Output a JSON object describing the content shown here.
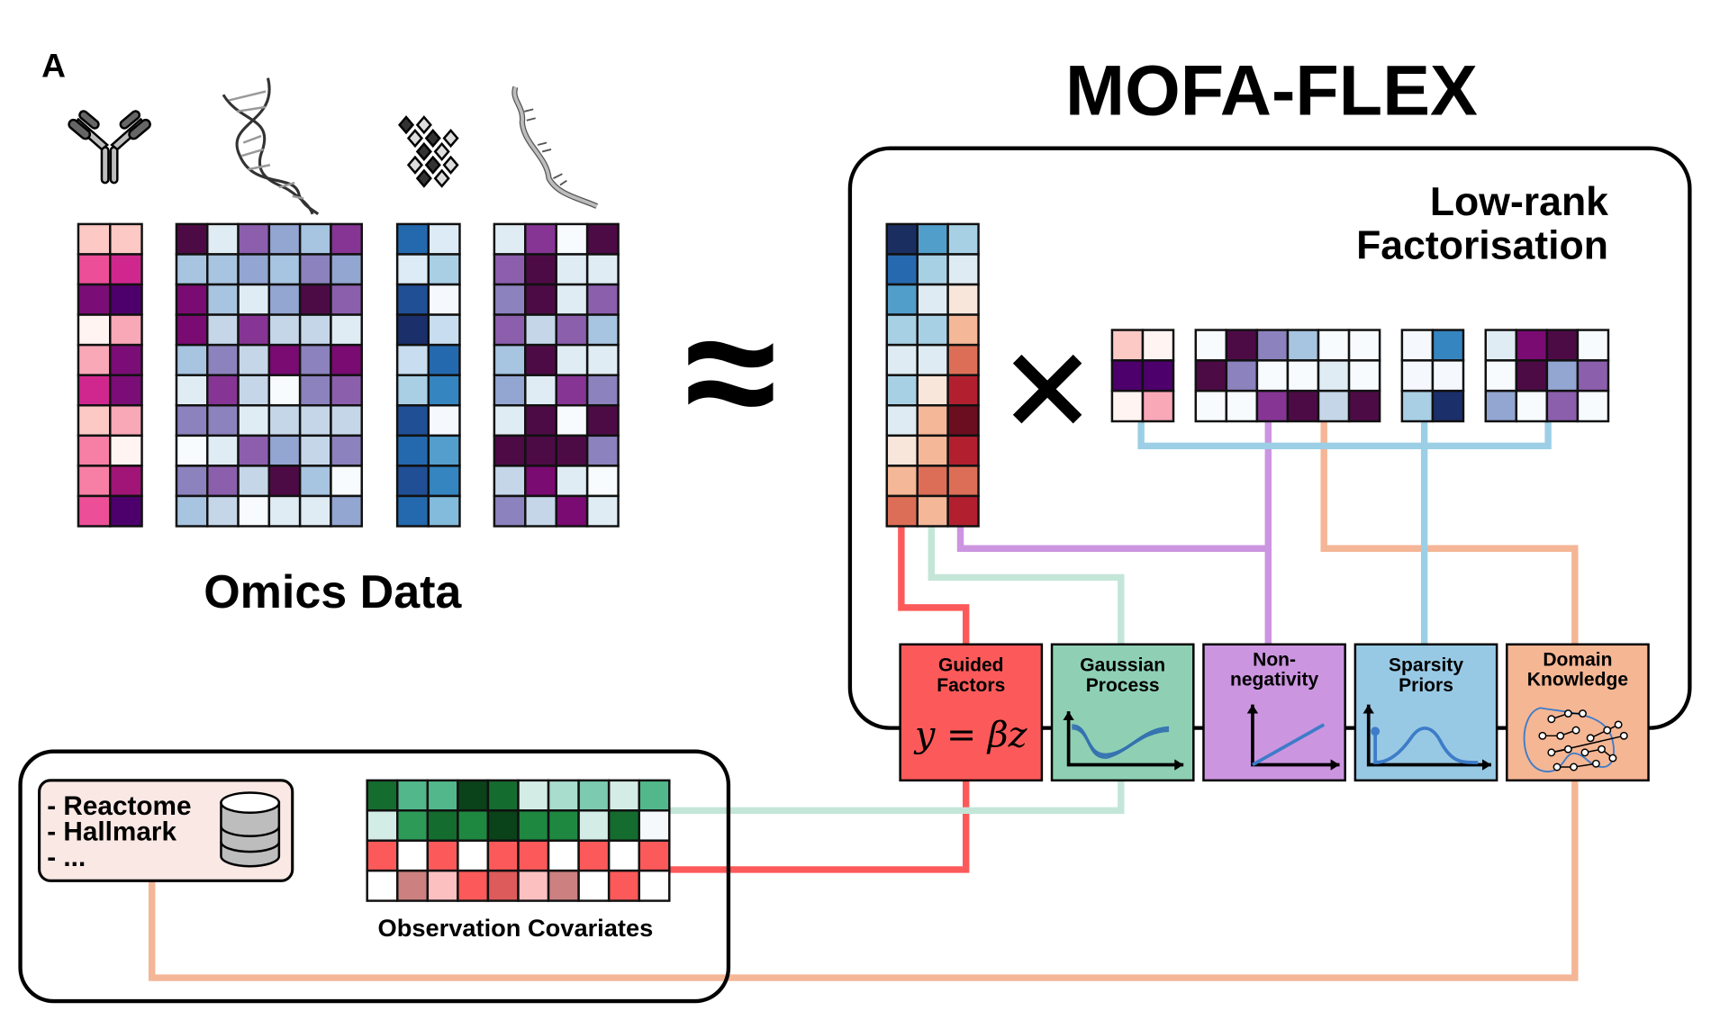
{
  "panel_label": "A",
  "title": "MOFA-FLEX",
  "omics_label": "Omics Data",
  "approx_symbol": "≈",
  "times_symbol": "×",
  "factorisation": {
    "line1": "Low-rank",
    "line2": "Factorisation"
  },
  "icons": [
    "antibody-icon",
    "dna-icon",
    "protein-lattice-icon",
    "rna-icon",
    "database-icon"
  ],
  "modules": [
    {
      "line1": "Guided",
      "line2": "Factors",
      "color": "#fc5a5a",
      "equation": "y = βz"
    },
    {
      "line1": "Gaussian",
      "line2": "Process",
      "color": "#8fd0b5"
    },
    {
      "line1": "Non-",
      "line2": "negativity",
      "color": "#cc95e0"
    },
    {
      "line1": "Sparsity",
      "line2": "Priors",
      "color": "#98c9e4"
    },
    {
      "line1": "Domain",
      "line2": "Knowledge",
      "color": "#f5b694"
    }
  ],
  "connector_colors": {
    "red": "#fc5a5a",
    "mint": "#c4e6d9",
    "purple": "#cc95e0",
    "blue": "#9ccfe6",
    "orange": "#f4b696"
  },
  "database": {
    "items": [
      "- Reactome",
      "- Hallmark",
      "- ..."
    ],
    "fill": "#f9e8e4"
  },
  "covariates_label": "Observation Covariates",
  "matrices": {
    "omics1": [
      [
        "#fcc9c5",
        "#fcc9c5"
      ],
      [
        "#ec4f98",
        "#d0278f"
      ],
      [
        "#7a0e76",
        "#4d006b"
      ],
      [
        "#fff4f2",
        "#f9a8b8"
      ],
      [
        "#f9a8b8",
        "#7a0e76"
      ],
      [
        "#d0278f",
        "#7a0e76"
      ],
      [
        "#fcc9c5",
        "#f9a8b8"
      ],
      [
        "#f77fa5",
        "#fff4f2"
      ],
      [
        "#f77fa5",
        "#a11577"
      ],
      [
        "#ec4f98",
        "#4d006b"
      ]
    ],
    "omics2": [
      [
        "#4d0b46",
        "#e0ecf4",
        "#8c5fad",
        "#93a5d1",
        "#a7c4e0",
        "#863594"
      ],
      [
        "#a7c4e0",
        "#a7c4e0",
        "#93a5d1",
        "#a7c4e0",
        "#8c82bd",
        "#93a5d1"
      ],
      [
        "#7a0b72",
        "#a7c4e0",
        "#e0ecf4",
        "#93a5d1",
        "#4d0b46",
        "#8c5fad"
      ],
      [
        "#7a0b72",
        "#c5d6e8",
        "#863594",
        "#c5d6e8",
        "#c5d6e8",
        "#e0ecf4"
      ],
      [
        "#a7c4e0",
        "#8c82bd",
        "#c5d6e8",
        "#7a0b72",
        "#8c82bd",
        "#7a0b72"
      ],
      [
        "#e0ecf4",
        "#863594",
        "#c5d6e8",
        "#f7fbfd",
        "#8c82bd",
        "#8c5fad"
      ],
      [
        "#8c82bd",
        "#8c82bd",
        "#e0ecf4",
        "#c5d6e8",
        "#c5d6e8",
        "#c5d6e8"
      ],
      [
        "#f7fbfd",
        "#e0ecf4",
        "#8c5fad",
        "#93a5d1",
        "#c5d6e8",
        "#8c82bd"
      ],
      [
        "#8c82bd",
        "#8c5fad",
        "#c5d6e8",
        "#4d0b46",
        "#a7c4e0",
        "#f7fbfd"
      ],
      [
        "#a7c4e0",
        "#c5d6e8",
        "#f7fbfd",
        "#e0ecf4",
        "#e0ecf4",
        "#93a5d1"
      ]
    ],
    "omics3": [
      [
        "#2469ae",
        "#ddebf6"
      ],
      [
        "#ddebf6",
        "#a9cfe5"
      ],
      [
        "#214f96",
        "#f5f9fe"
      ],
      [
        "#1b2f6b",
        "#c9ddf0"
      ],
      [
        "#c9ddf0",
        "#2469ae"
      ],
      [
        "#a9cfe5",
        "#3585c0"
      ],
      [
        "#214f96",
        "#f5f9fe"
      ],
      [
        "#2469ae",
        "#539ecd"
      ],
      [
        "#214f96",
        "#3585c0"
      ],
      [
        "#2469ae",
        "#82bbdb"
      ]
    ],
    "omics4": [
      [
        "#e0ecf4",
        "#863594",
        "#f7fbfd",
        "#4d0b46"
      ],
      [
        "#8c5fad",
        "#4d0b46",
        "#e0ecf4",
        "#e0ecf4"
      ],
      [
        "#8c82bd",
        "#4d0b46",
        "#e0ecf4",
        "#8c5fad"
      ],
      [
        "#8c5fad",
        "#c5d6e8",
        "#8c5fad",
        "#a7c4e0"
      ],
      [
        "#a7c4e0",
        "#4d0b46",
        "#e0ecf4",
        "#e0ecf4"
      ],
      [
        "#93a5d1",
        "#e0ecf4",
        "#863594",
        "#8c82bd"
      ],
      [
        "#e0ecf4",
        "#4d0b46",
        "#f7fbfd",
        "#4d0b46"
      ],
      [
        "#4d0b46",
        "#4d0b46",
        "#4d0b46",
        "#8c82bd"
      ],
      [
        "#c5d6e8",
        "#7a0b72",
        "#e0ecf4",
        "#f7fbfd"
      ],
      [
        "#8c82bd",
        "#c5d6e8",
        "#7a0b72",
        "#e0ecf4"
      ]
    ],
    "factors": [
      [
        "#1a2e60",
        "#529ecb",
        "#a8d0e5"
      ],
      [
        "#2769ae",
        "#a8d0e5",
        "#deebf2"
      ],
      [
        "#529ecb",
        "#deebf2",
        "#f9e6da"
      ],
      [
        "#a8d0e5",
        "#a8d0e5",
        "#f4b797"
      ],
      [
        "#deebf2",
        "#deebf2",
        "#dc6e57"
      ],
      [
        "#a8d0e5",
        "#f9e6da",
        "#b2202f"
      ],
      [
        "#deebf2",
        "#f4b797",
        "#6b0e1f"
      ],
      [
        "#f9e6da",
        "#f4b797",
        "#b2202f"
      ],
      [
        "#f4b797",
        "#dc6e57",
        "#dc6e57"
      ],
      [
        "#dc6e57",
        "#f4b797",
        "#b2202f"
      ]
    ],
    "weights1": [
      [
        "#fcc9c5",
        "#fff4f2"
      ],
      [
        "#4d006b",
        "#4d006b"
      ],
      [
        "#fff4f2",
        "#f9a8b8"
      ]
    ],
    "weights2": [
      [
        "#f7fbfd",
        "#4d0b46",
        "#8c82bd",
        "#a7c4e0",
        "#f7fbfd",
        "#f7fbfd"
      ],
      [
        "#4d0b46",
        "#8c82bd",
        "#f7fbfd",
        "#f7fbfd",
        "#e0ecf4",
        "#f7fbfd"
      ],
      [
        "#f7fbfd",
        "#f7fbfd",
        "#863594",
        "#4d0b46",
        "#c5d6e8",
        "#4d0b46"
      ]
    ],
    "weights3": [
      [
        "#f5f9fe",
        "#3585c0"
      ],
      [
        "#f5f9fe",
        "#f5f9fe"
      ],
      [
        "#a9cfe5",
        "#1b2f6b"
      ]
    ],
    "weights4": [
      [
        "#e0ecf4",
        "#7a0b72",
        "#4d0b46",
        "#f7fbfd"
      ],
      [
        "#f7fbfd",
        "#4d0b46",
        "#93a5d1",
        "#8c5fad"
      ],
      [
        "#93a5d1",
        "#f7fbfd",
        "#8c5fad",
        "#f7fbfd"
      ]
    ],
    "covariates": [
      [
        "#156c2f",
        "#52b88c",
        "#52b88c",
        "#0a4219",
        "#156c2f",
        "#d4ece6",
        "#a8dccd",
        "#7ccaaf",
        "#d4ece6",
        "#52b88c"
      ],
      [
        "#d4ece6",
        "#2e9a58",
        "#156c2f",
        "#1e8841",
        "#0a4219",
        "#1e8841",
        "#1e8841",
        "#d4ece6",
        "#156c2f",
        "#f5f9fc"
      ],
      [
        "#fc5a5a",
        "#ffffff",
        "#fc5a5a",
        "#ffffff",
        "#fc5a5a",
        "#fc5a5a",
        "#ffffff",
        "#fc5a5a",
        "#ffffff",
        "#fc5a5a"
      ],
      [
        "#ffffff",
        "#cc8080",
        "#fdc0c0",
        "#fc5a5a",
        "#dd5b5b",
        "#fdc0c0",
        "#cc8080",
        "#ffffff",
        "#fc5a5a",
        "#ffffff"
      ]
    ]
  }
}
